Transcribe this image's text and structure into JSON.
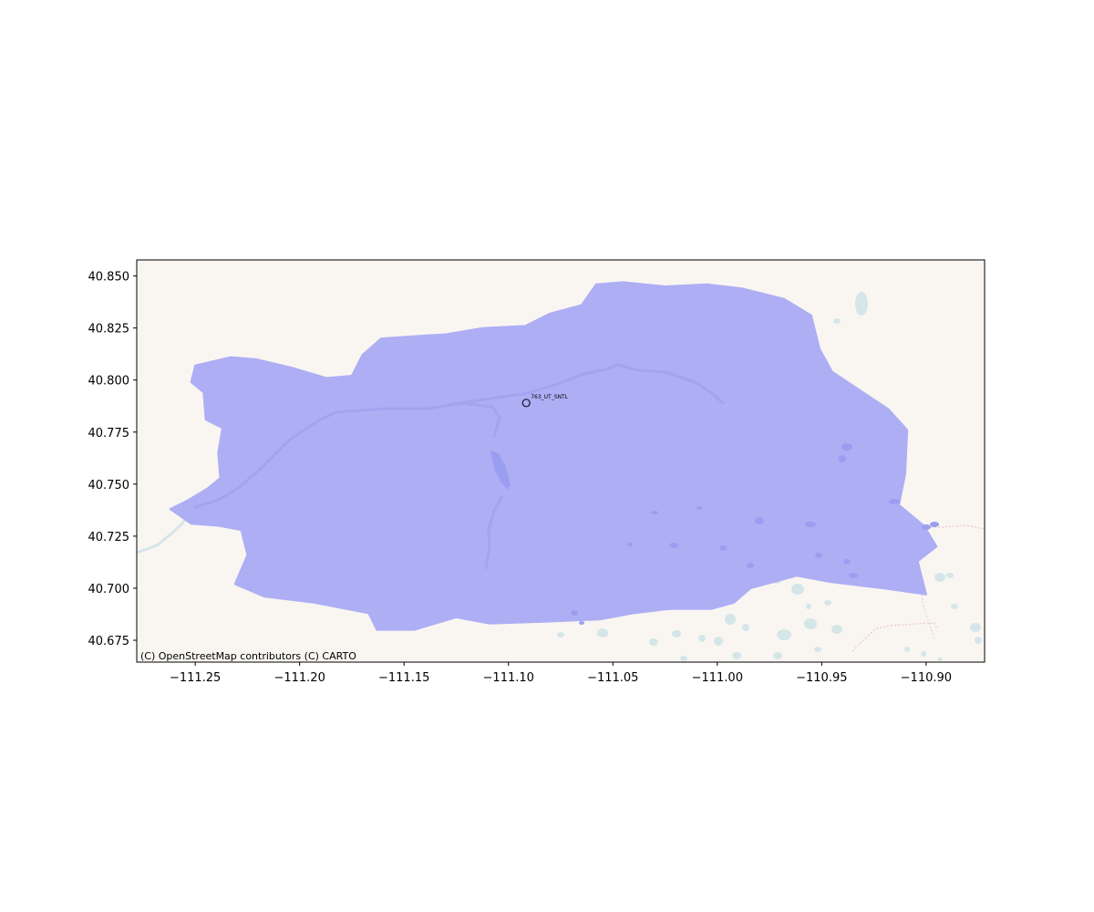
{
  "chart_data": {
    "type": "map",
    "xlim": [
      -111.278,
      -110.872
    ],
    "ylim": [
      40.6645,
      40.8577
    ],
    "x_ticks": [
      -111.25,
      -111.2,
      -111.15,
      -111.1,
      -111.05,
      -111.0,
      -110.95,
      -110.9
    ],
    "x_tick_labels": [
      "−111.25",
      "−111.20",
      "−111.15",
      "−111.10",
      "−111.05",
      "−111.00",
      "−110.95",
      "−110.90"
    ],
    "y_ticks": [
      40.675,
      40.7,
      40.725,
      40.75,
      40.775,
      40.8,
      40.825,
      40.85
    ],
    "y_tick_labels": [
      "40.675",
      "40.700",
      "40.725",
      "40.750",
      "40.775",
      "40.800",
      "40.825",
      "40.850"
    ],
    "basemap_attribution": "(C) OpenStreetMap contributors (C) CARTO",
    "basemap_color": "#f9f6f2",
    "water_color": "#d4e6e8",
    "watershed_color": "#aeaef5",
    "watershed_boundary": [
      [
        -111.254,
        40.742
      ],
      [
        -111.244,
        40.748
      ],
      [
        -111.238,
        40.753
      ],
      [
        -111.239,
        40.765
      ],
      [
        -111.237,
        40.777
      ],
      [
        -111.245,
        40.781
      ],
      [
        -111.246,
        40.794
      ],
      [
        -111.252,
        40.799
      ],
      [
        -111.25,
        40.807
      ],
      [
        -111.233,
        40.811
      ],
      [
        -111.221,
        40.81
      ],
      [
        -111.204,
        40.806
      ],
      [
        -111.187,
        40.801
      ],
      [
        -111.175,
        40.802
      ],
      [
        -111.17,
        40.812
      ],
      [
        -111.161,
        40.82
      ],
      [
        -111.146,
        40.821
      ],
      [
        -111.13,
        40.822
      ],
      [
        -111.112,
        40.825
      ],
      [
        -111.092,
        40.826
      ],
      [
        -111.08,
        40.832
      ],
      [
        -111.065,
        40.836
      ],
      [
        -111.058,
        40.846
      ],
      [
        -111.045,
        40.847
      ],
      [
        -111.025,
        40.845
      ],
      [
        -111.005,
        40.846
      ],
      [
        -110.988,
        40.844
      ],
      [
        -110.968,
        40.839
      ],
      [
        -110.955,
        40.831
      ],
      [
        -110.951,
        40.815
      ],
      [
        -110.945,
        40.804
      ],
      [
        -110.93,
        40.794
      ],
      [
        -110.918,
        40.786
      ],
      [
        -110.909,
        40.776
      ],
      [
        -110.91,
        40.755
      ],
      [
        -110.913,
        40.74
      ],
      [
        -110.901,
        40.73
      ],
      [
        -110.895,
        40.72
      ],
      [
        -110.904,
        40.713
      ],
      [
        -110.9,
        40.697
      ],
      [
        -110.921,
        40.7
      ],
      [
        -110.946,
        40.703
      ],
      [
        -110.962,
        40.706
      ],
      [
        -110.984,
        40.7
      ],
      [
        -110.992,
        40.693
      ],
      [
        -111.003,
        40.69
      ],
      [
        -111.023,
        40.69
      ],
      [
        -111.04,
        40.688
      ],
      [
        -111.056,
        40.685
      ],
      [
        -111.08,
        40.684
      ],
      [
        -111.109,
        40.683
      ],
      [
        -111.125,
        40.686
      ],
      [
        -111.145,
        40.68
      ],
      [
        -111.163,
        40.68
      ],
      [
        -111.167,
        40.688
      ],
      [
        -111.193,
        40.693
      ],
      [
        -111.217,
        40.696
      ],
      [
        -111.231,
        40.702
      ],
      [
        -111.225,
        40.716
      ],
      [
        -111.228,
        40.728
      ],
      [
        -111.239,
        40.73
      ],
      [
        -111.252,
        40.731
      ],
      [
        -111.262,
        40.738
      ]
    ],
    "gauge_points": [
      {
        "lon": -111.0915,
        "lat": 40.789,
        "label": "763_UT_SNTL"
      }
    ]
  }
}
